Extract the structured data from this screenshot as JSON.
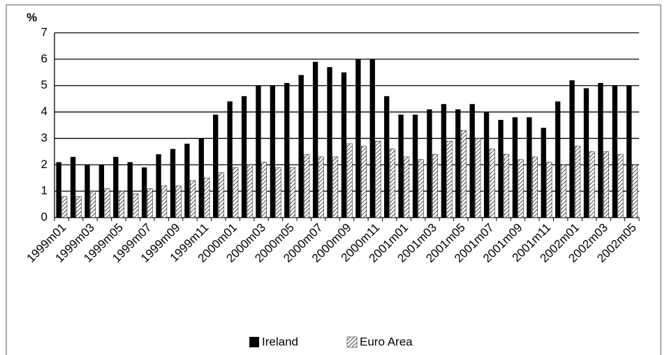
{
  "chart_data": {
    "type": "bar",
    "y_label": "%",
    "categories": [
      "1999m01",
      null,
      "1999m03",
      null,
      "1999m05",
      null,
      "1999m07",
      null,
      "1999m09",
      null,
      "1999m11",
      null,
      "2000m01",
      null,
      "2000m03",
      null,
      "2000m05",
      null,
      "2000m07",
      null,
      "2000m09",
      null,
      "2000m11",
      null,
      "2001m01",
      null,
      "2001m03",
      null,
      "2001m05",
      null,
      "2001m07",
      null,
      "2001m09",
      null,
      "2001m11",
      null,
      "2002m01",
      null,
      "2002m03",
      null,
      "2002m05"
    ],
    "series": [
      {
        "name": "Ireland",
        "color": "#000000",
        "pattern": "solid",
        "values": [
          2.1,
          2.3,
          2.0,
          2.0,
          2.3,
          2.1,
          1.9,
          2.4,
          2.6,
          2.8,
          3.0,
          3.9,
          4.4,
          4.6,
          5.0,
          5.0,
          5.1,
          5.4,
          5.9,
          5.7,
          5.5,
          6.0,
          6.0,
          4.6,
          3.9,
          3.9,
          4.1,
          4.3,
          4.1,
          4.3,
          4.0,
          3.7,
          3.8,
          3.8,
          3.4,
          4.4,
          5.2,
          4.9,
          5.1,
          5.0,
          5.0
        ]
      },
      {
        "name": "Euro Area",
        "color": "#000000",
        "pattern": "diagonal-hatch",
        "values": [
          0.8,
          0.8,
          1.0,
          1.1,
          1.0,
          0.9,
          1.1,
          1.2,
          1.2,
          1.4,
          1.5,
          1.7,
          1.9,
          2.0,
          2.1,
          1.9,
          1.9,
          2.4,
          2.3,
          2.3,
          2.8,
          2.7,
          2.9,
          2.6,
          2.3,
          2.2,
          2.4,
          2.9,
          3.3,
          3.0,
          2.6,
          2.4,
          2.2,
          2.3,
          2.1,
          2.0,
          2.7,
          2.5,
          2.5,
          2.4,
          2.0
        ]
      }
    ],
    "ylim": [
      0,
      7
    ],
    "yticks": [
      0,
      1,
      2,
      3,
      4,
      5,
      6,
      7
    ],
    "grid": true,
    "legend": "bottom"
  }
}
